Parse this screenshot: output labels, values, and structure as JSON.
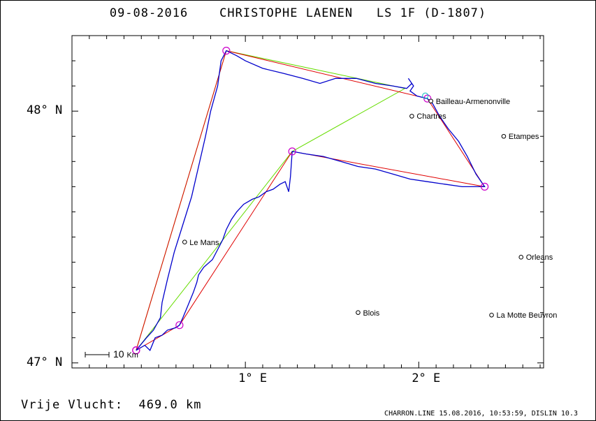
{
  "title": {
    "date": "09-08-2016",
    "pilot": "CHRISTOPHE LAENEN",
    "glider": "LS 1F (D-1807)"
  },
  "axes": {
    "y_labels": [
      {
        "text": "48° N",
        "lat": 48.0
      },
      {
        "text": "47° N",
        "lat": 47.0
      }
    ],
    "x_labels": [
      {
        "text": "1° E",
        "lon": 1.0
      },
      {
        "text": "2° E",
        "lon": 2.0
      }
    ],
    "lon_range": [
      0.0,
      2.72
    ],
    "lat_range": [
      46.98,
      48.3
    ]
  },
  "scale_bar": {
    "value": "10",
    "unit": "Km"
  },
  "turnpoints": [
    {
      "lon": 0.37,
      "lat": 47.05
    },
    {
      "lon": 0.89,
      "lat": 48.24
    },
    {
      "lon": 2.05,
      "lat": 48.05
    },
    {
      "lon": 2.38,
      "lat": 47.7
    },
    {
      "lon": 1.27,
      "lat": 47.84
    },
    {
      "lon": 0.62,
      "lat": 47.15
    },
    {
      "lon": 0.37,
      "lat": 47.05
    }
  ],
  "triangle": [
    {
      "lon": 0.37,
      "lat": 47.05
    },
    {
      "lon": 0.89,
      "lat": 48.24
    },
    {
      "lon": 1.92,
      "lat": 48.09
    },
    {
      "lon": 1.27,
      "lat": 47.84
    },
    {
      "lon": 0.37,
      "lat": 47.05
    }
  ],
  "track": [
    [
      0.37,
      47.05
    ],
    [
      0.42,
      47.07
    ],
    [
      0.45,
      47.05
    ],
    [
      0.48,
      47.1
    ],
    [
      0.52,
      47.11
    ],
    [
      0.55,
      47.13
    ],
    [
      0.6,
      47.14
    ],
    [
      0.62,
      47.15
    ],
    [
      0.64,
      47.18
    ],
    [
      0.67,
      47.23
    ],
    [
      0.7,
      47.28
    ],
    [
      0.72,
      47.32
    ],
    [
      0.73,
      47.35
    ],
    [
      0.76,
      47.38
    ],
    [
      0.81,
      47.41
    ],
    [
      0.84,
      47.45
    ],
    [
      0.87,
      47.49
    ],
    [
      0.89,
      47.53
    ],
    [
      0.92,
      47.57
    ],
    [
      0.95,
      47.6
    ],
    [
      0.99,
      47.63
    ],
    [
      1.04,
      47.65
    ],
    [
      1.08,
      47.66
    ],
    [
      1.12,
      47.68
    ],
    [
      1.16,
      47.69
    ],
    [
      1.2,
      47.71
    ],
    [
      1.23,
      47.72
    ],
    [
      1.25,
      47.68
    ],
    [
      1.26,
      47.74
    ],
    [
      1.27,
      47.84
    ],
    [
      1.35,
      47.83
    ],
    [
      1.45,
      47.82
    ],
    [
      1.55,
      47.8
    ],
    [
      1.65,
      47.78
    ],
    [
      1.75,
      47.77
    ],
    [
      1.85,
      47.75
    ],
    [
      1.95,
      47.73
    ],
    [
      2.05,
      47.72
    ],
    [
      2.15,
      47.71
    ],
    [
      2.25,
      47.7
    ],
    [
      2.38,
      47.7
    ],
    [
      2.33,
      47.75
    ],
    [
      2.28,
      47.82
    ],
    [
      2.23,
      47.88
    ],
    [
      2.17,
      47.93
    ],
    [
      2.12,
      47.98
    ],
    [
      2.08,
      48.03
    ],
    [
      2.05,
      48.05
    ],
    [
      1.99,
      48.06
    ],
    [
      1.95,
      48.08
    ],
    [
      1.97,
      48.1
    ],
    [
      1.94,
      48.13
    ],
    [
      1.96,
      48.11
    ],
    [
      1.93,
      48.09
    ],
    [
      1.85,
      48.1
    ],
    [
      1.75,
      48.11
    ],
    [
      1.64,
      48.13
    ],
    [
      1.52,
      48.13
    ],
    [
      1.43,
      48.11
    ],
    [
      1.33,
      48.13
    ],
    [
      1.22,
      48.15
    ],
    [
      1.1,
      48.17
    ],
    [
      1.0,
      48.2
    ],
    [
      0.95,
      48.22
    ],
    [
      0.89,
      48.24
    ],
    [
      0.86,
      48.2
    ],
    [
      0.84,
      48.1
    ],
    [
      0.8,
      48.0
    ],
    [
      0.77,
      47.9
    ],
    [
      0.73,
      47.78
    ],
    [
      0.69,
      47.66
    ],
    [
      0.64,
      47.55
    ],
    [
      0.59,
      47.44
    ],
    [
      0.55,
      47.33
    ],
    [
      0.52,
      47.24
    ],
    [
      0.51,
      47.18
    ],
    [
      0.47,
      47.13
    ],
    [
      0.43,
      47.1
    ],
    [
      0.37,
      47.05
    ]
  ],
  "cities": [
    {
      "name": "Bailleau-Armenonville",
      "lon": 2.07,
      "lat": 48.04
    },
    {
      "name": "Chartres",
      "lon": 1.96,
      "lat": 47.98
    },
    {
      "name": "Etampes",
      "lon": 2.49,
      "lat": 47.9
    },
    {
      "name": "Le Mans",
      "lon": 0.65,
      "lat": 47.48
    },
    {
      "name": "Orleans",
      "lon": 2.59,
      "lat": 47.42
    },
    {
      "name": "Blois",
      "lon": 1.65,
      "lat": 47.2
    },
    {
      "name": "La Motte Beuvron",
      "lon": 2.42,
      "lat": 47.19
    }
  ],
  "colors": {
    "task": "#e00000",
    "triangle": "#66dd00",
    "track": "#0000cc",
    "turnpoint": "#cc00cc",
    "start_marker": "#00bbbb"
  },
  "footer": {
    "distance_label": "Vrije Vlucht:",
    "distance_value": "469.0 km",
    "credit": "CHARRON.LINE 15.08.2016, 10:53:59, DISLIN 10.3"
  }
}
